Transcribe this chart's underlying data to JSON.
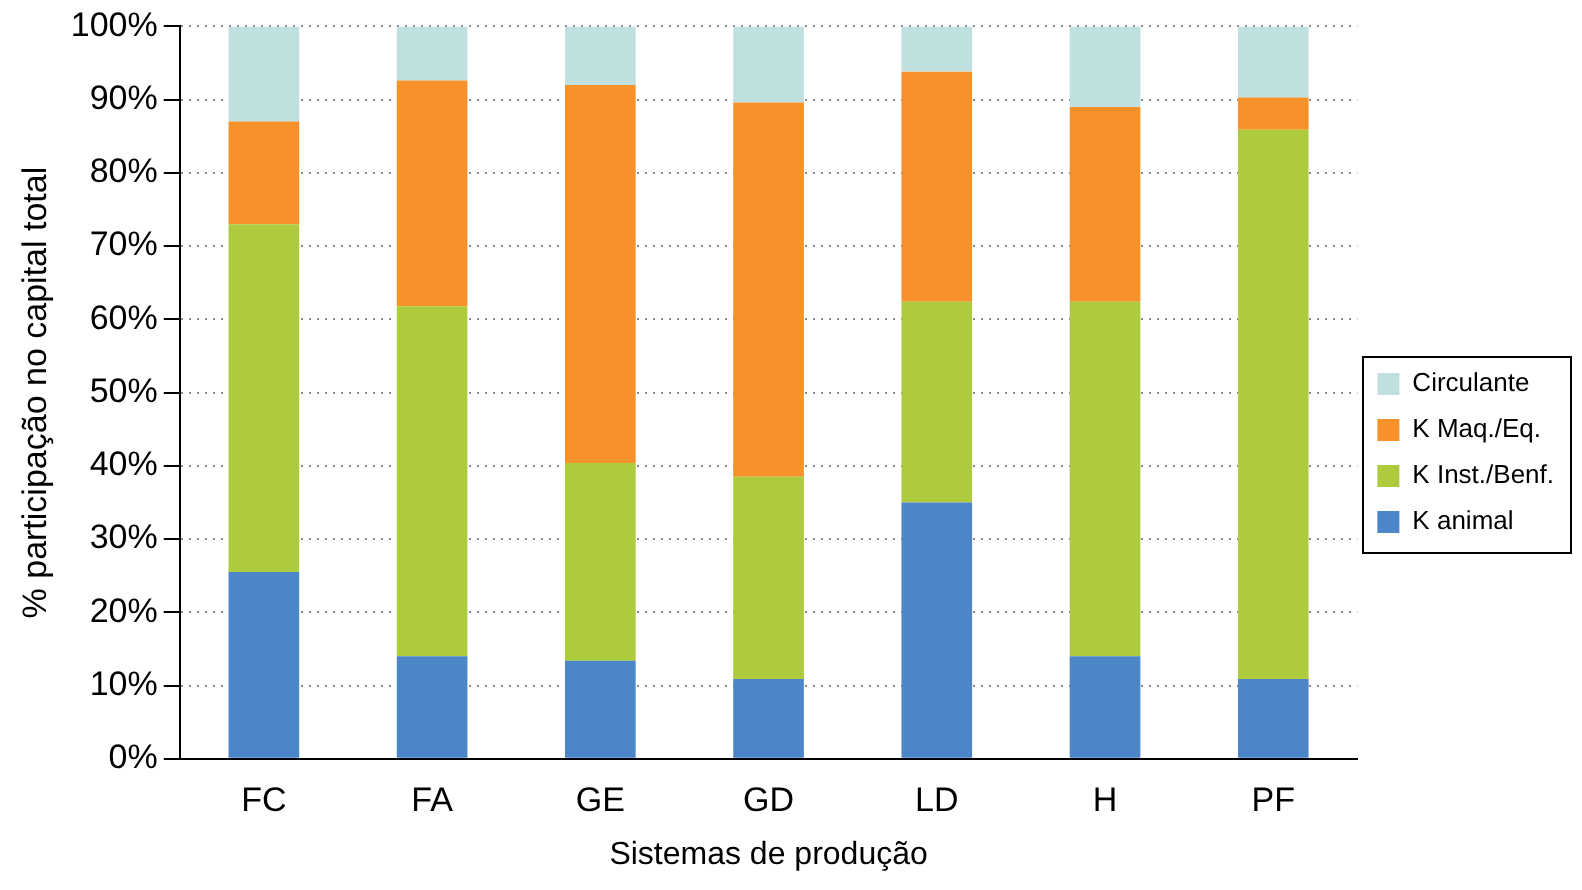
{
  "chart_data": {
    "type": "bar",
    "stacked": true,
    "xlabel": "Sistemas de produção",
    "ylabel": "% participação no capital total",
    "categories": [
      "FC",
      "FA",
      "GE",
      "GD",
      "LD",
      "H",
      "PF"
    ],
    "series": [
      {
        "name": "K animal",
        "color": "#4a86c8",
        "values": [
          25.5,
          14,
          13.4,
          10.9,
          35,
          14,
          10.9
        ]
      },
      {
        "name": "K Inst./Benf.",
        "color": "#adcb3c",
        "values": [
          47.5,
          47.8,
          27,
          27.6,
          27.4,
          48.4,
          75
        ]
      },
      {
        "name": "K Maq./Eq.",
        "color": "#f7922a",
        "values": [
          14,
          30.8,
          51.6,
          51.1,
          31.4,
          26.6,
          4.4
        ]
      },
      {
        "name": "Circulante",
        "color": "#c0e0df",
        "values": [
          13,
          7.4,
          8,
          10.4,
          6.2,
          11,
          9.7
        ]
      }
    ],
    "ylim": [
      0,
      100
    ],
    "yticks": [
      {
        "value": 0,
        "label": "0%"
      },
      {
        "value": 10,
        "label": "10%"
      },
      {
        "value": 20,
        "label": "20%"
      },
      {
        "value": 30,
        "label": "30%"
      },
      {
        "value": 40,
        "label": "40%"
      },
      {
        "value": 50,
        "label": "50%"
      },
      {
        "value": 60,
        "label": "60%"
      },
      {
        "value": 70,
        "label": "70%"
      },
      {
        "value": 80,
        "label": "80%"
      },
      {
        "value": 90,
        "label": "90%"
      },
      {
        "value": 100,
        "label": "100%"
      }
    ],
    "grid": "y",
    "legend": "right"
  }
}
